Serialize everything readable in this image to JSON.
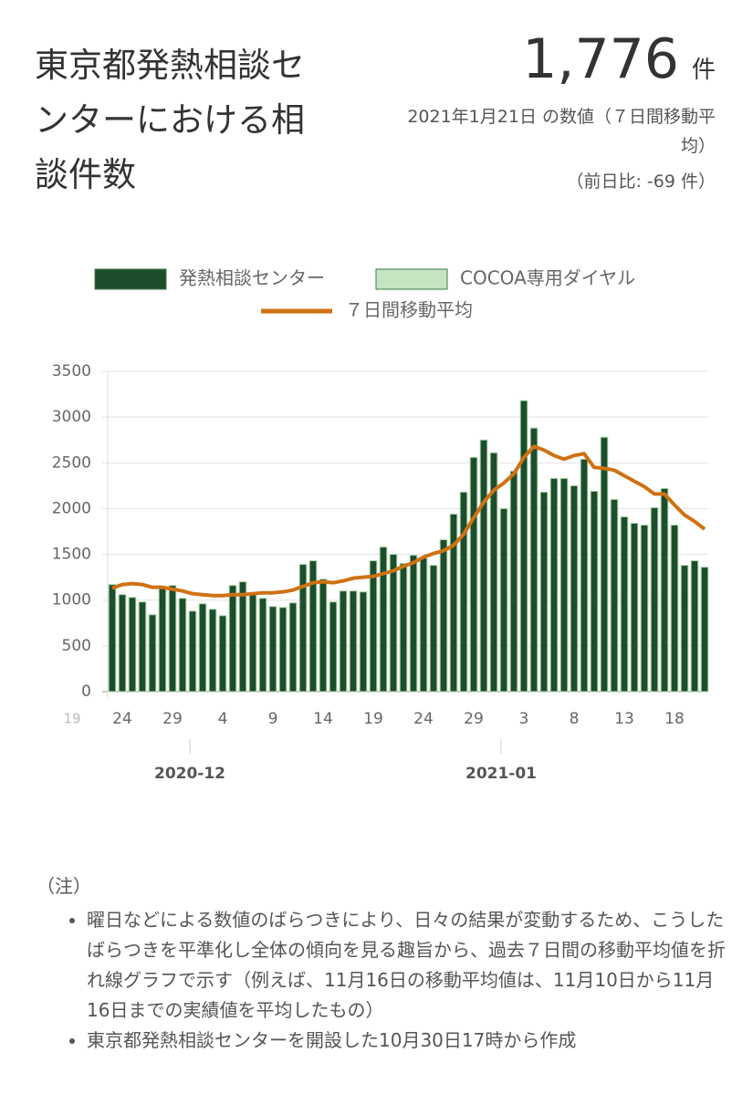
{
  "header": {
    "title": "東京都発熱相談センターにおける相談件数",
    "value": "1,776",
    "unit": "件",
    "date_note": "2021年1月21日 の数値（７日間移動平均）",
    "diff_note": "（前日比: -69 件）"
  },
  "chart_data": {
    "type": "bar",
    "categories": [
      "19",
      null,
      null,
      null,
      null,
      "24",
      null,
      null,
      null,
      null,
      "29",
      null,
      null,
      null,
      null,
      "4",
      null,
      null,
      null,
      null,
      "9",
      null,
      null,
      null,
      null,
      "14",
      null,
      null,
      null,
      null,
      "19",
      null,
      null,
      null,
      null,
      "24",
      null,
      null,
      null,
      null,
      "29",
      null,
      null,
      null,
      null,
      "3",
      null,
      null,
      null,
      null,
      "8",
      null,
      null,
      null,
      null,
      "13",
      null,
      null,
      null,
      null,
      "18",
      null,
      null,
      null
    ],
    "month_ticks": [
      {
        "value": 12,
        "label": "2020-12"
      },
      {
        "value": 43,
        "label": "2021-01"
      }
    ],
    "series": [
      {
        "name": "発熱相談センター",
        "type": "bar",
        "color": "#1d4e2c",
        "values": [
          null,
          null,
          null,
          null,
          1170,
          1060,
          1030,
          980,
          840,
          1150,
          1160,
          1020,
          880,
          960,
          900,
          830,
          1160,
          1200,
          1060,
          1020,
          930,
          920,
          970,
          1390,
          1430,
          1230,
          980,
          1100,
          1100,
          1090,
          1430,
          1580,
          1500,
          1400,
          1490,
          1460,
          1380,
          1660,
          1940,
          2180,
          2560,
          2750,
          2610,
          2000,
          2410,
          3180,
          2880,
          2180,
          2330,
          2330,
          2250,
          2540,
          2190,
          2780,
          2100,
          1910,
          1840,
          1820,
          2010,
          2220,
          1820,
          1380,
          1430,
          1360
        ]
      },
      {
        "name": "COCOA専用ダイヤル",
        "type": "bar",
        "color": "#c5e5c2",
        "values": [
          null,
          null,
          null,
          null,
          0,
          0,
          0,
          0,
          0,
          0,
          0,
          0,
          0,
          0,
          0,
          0,
          0,
          0,
          0,
          0,
          0,
          0,
          0,
          0,
          0,
          0,
          0,
          0,
          0,
          0,
          0,
          0,
          0,
          0,
          0,
          0,
          0,
          0,
          0,
          0,
          0,
          0,
          0,
          0,
          0,
          0,
          0,
          0,
          0,
          0,
          0,
          0,
          0,
          0,
          0,
          0,
          0,
          0,
          0,
          0,
          0,
          0,
          0,
          0
        ]
      },
      {
        "name": "７日間移動平均",
        "type": "line",
        "color": "#cf7213",
        "values": [
          null,
          null,
          null,
          null,
          1130,
          1170,
          1180,
          1170,
          1140,
          1140,
          1120,
          1100,
          1070,
          1060,
          1050,
          1050,
          1060,
          1060,
          1070,
          1080,
          1080,
          1090,
          1110,
          1150,
          1190,
          1200,
          1190,
          1210,
          1240,
          1250,
          1260,
          1290,
          1320,
          1370,
          1410,
          1470,
          1510,
          1540,
          1600,
          1720,
          1900,
          2070,
          2200,
          2280,
          2380,
          2560,
          2680,
          2640,
          2580,
          2540,
          2580,
          2600,
          2450,
          2440,
          2420,
          2360,
          2300,
          2240,
          2160,
          2160,
          2040,
          1930,
          1860,
          1776
        ]
      }
    ],
    "ylim": [
      0,
      3500
    ],
    "yticks": [
      0,
      500,
      1000,
      1500,
      2000,
      2500,
      3000,
      3500
    ],
    "grid": true,
    "stacked": true
  },
  "notes": {
    "heading": "（注）",
    "items": [
      "曜日などによる数値のばらつきにより、日々の結果が変動するため、こうしたばらつきを平準化し全体の傾向を見る趣旨から、過去７日間の移動平均値を折れ線グラフで示す（例えば、11月16日の移動平均値は、11月10日から11月16日までの実績値を平均したもの）",
      "東京都発熱相談センターを開設した10月30日17時から作成"
    ]
  }
}
